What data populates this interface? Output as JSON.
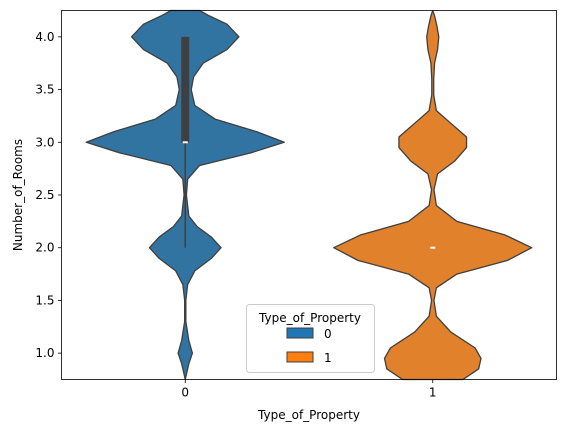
{
  "chart_data": {
    "type": "violin",
    "xlabel": "Type_of_Property",
    "ylabel": "Number_of_Rooms",
    "categories": [
      "0",
      "1"
    ],
    "ylim": [
      0.75,
      4.25
    ],
    "yticks": [
      "1.0",
      "1.5",
      "2.0",
      "2.5",
      "3.0",
      "3.5",
      "4.0"
    ],
    "legend": {
      "title": "Type_of_Property",
      "placement": "lower-center",
      "entries": [
        {
          "label": "0",
          "color": "#1f77b4"
        },
        {
          "label": "1",
          "color": "#ff7f0e"
        }
      ]
    },
    "series": [
      {
        "category": "0",
        "color": "#3274a1",
        "median": 3.0,
        "q1": 3.0,
        "q3": 4.0,
        "whisker_low": 2.0,
        "whisker_high": 4.0,
        "density": [
          [
            0.75,
            0.0
          ],
          [
            0.9,
            0.03
          ],
          [
            1.0,
            0.06
          ],
          [
            1.12,
            0.03
          ],
          [
            1.3,
            0.005
          ],
          [
            1.5,
            0.005
          ],
          [
            1.65,
            0.02
          ],
          [
            1.78,
            0.08
          ],
          [
            1.9,
            0.22
          ],
          [
            2.0,
            0.3
          ],
          [
            2.1,
            0.22
          ],
          [
            2.2,
            0.1
          ],
          [
            2.3,
            0.03
          ],
          [
            2.5,
            0.01
          ],
          [
            2.65,
            0.02
          ],
          [
            2.78,
            0.12
          ],
          [
            2.9,
            0.55
          ],
          [
            3.0,
            0.83
          ],
          [
            3.1,
            0.6
          ],
          [
            3.22,
            0.25
          ],
          [
            3.35,
            0.08
          ],
          [
            3.5,
            0.05
          ],
          [
            3.62,
            0.07
          ],
          [
            3.75,
            0.15
          ],
          [
            3.88,
            0.35
          ],
          [
            4.0,
            0.45
          ],
          [
            4.12,
            0.35
          ],
          [
            4.2,
            0.2
          ],
          [
            4.25,
            0.12
          ]
        ]
      },
      {
        "category": "1",
        "color": "#e1812c",
        "median": 2.0,
        "q1": 2.0,
        "q3": 2.0,
        "whisker_low": 2.0,
        "whisker_high": 2.0,
        "density": [
          [
            0.75,
            0.25
          ],
          [
            0.85,
            0.38
          ],
          [
            0.95,
            0.4
          ],
          [
            1.05,
            0.35
          ],
          [
            1.2,
            0.15
          ],
          [
            1.35,
            0.03
          ],
          [
            1.5,
            0.01
          ],
          [
            1.62,
            0.03
          ],
          [
            1.75,
            0.2
          ],
          [
            1.88,
            0.62
          ],
          [
            2.0,
            0.82
          ],
          [
            2.12,
            0.6
          ],
          [
            2.25,
            0.2
          ],
          [
            2.4,
            0.03
          ],
          [
            2.55,
            0.01
          ],
          [
            2.7,
            0.04
          ],
          [
            2.82,
            0.18
          ],
          [
            2.95,
            0.28
          ],
          [
            3.05,
            0.28
          ],
          [
            3.18,
            0.15
          ],
          [
            3.3,
            0.03
          ],
          [
            3.45,
            0.008
          ],
          [
            3.6,
            0.008
          ],
          [
            3.75,
            0.015
          ],
          [
            3.88,
            0.04
          ],
          [
            4.0,
            0.05
          ],
          [
            4.1,
            0.035
          ],
          [
            4.2,
            0.015
          ],
          [
            4.25,
            0.0
          ]
        ]
      }
    ]
  }
}
